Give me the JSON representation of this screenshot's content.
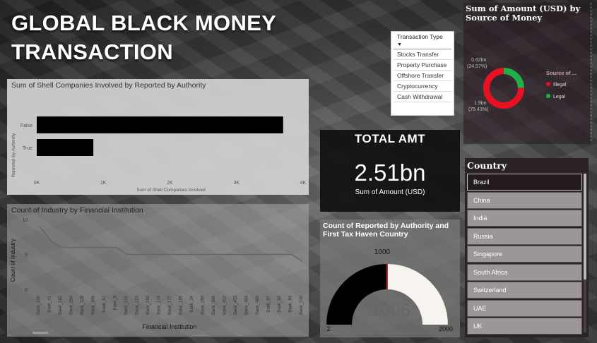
{
  "title": "GLOBAL BLACK MONEY TRANSACTION",
  "shell_chart": {
    "title": "Sum of Shell Companies Involved by Reported by Authority",
    "ylabel": "Reported by Authority",
    "xlabel": "Sum of Shell Companies Involved",
    "bar_color": "#000000"
  },
  "industry_chart": {
    "title": "Count of Industry by Financial Institution",
    "ylabel": "Count of Industry",
    "xlabel": "Financial Institution",
    "line_color": "#5a6a68"
  },
  "transaction_slicer": {
    "header": "Transaction Type",
    "items": [
      "Stocks Transfer",
      "Property Purchase",
      "Offshore Transfer",
      "Cryptocurrency",
      "Cash Withdrawal"
    ]
  },
  "total_card": {
    "label": "TOTAL AMT",
    "value": "2.51bn",
    "sub": "Sum of Amount (USD)"
  },
  "gauge": {
    "title": "Count of Reported by Authority and First Tax Haven Country",
    "target_label": "1000",
    "value_label": "1006",
    "min_label": "2",
    "max_label": "2000",
    "fill_color": "#000000",
    "rest_color": "#f7f3ee",
    "target_color": "#c0181c"
  },
  "donut": {
    "title": "Sum of Amount (USD) by Source of Money",
    "legend_title": "Source of ...",
    "label_legal_amt": "0.62bn",
    "label_legal_pct": "(24.57%)",
    "label_illegal_amt": "1.9bn",
    "label_illegal_pct": "(75.43%)",
    "colors": {
      "Illegal": "#e81123",
      "Legal": "#20b04a"
    }
  },
  "country_slicer": {
    "title": "Country",
    "items": [
      "Brazil",
      "China",
      "India",
      "Russia",
      "Singapore",
      "South Africa",
      "Switzerland",
      "UAE",
      "UK"
    ],
    "selected": "Brazil"
  },
  "chart_data": [
    {
      "type": "bar",
      "title": "Sum of Shell Companies Involved by Reported by Authority",
      "xlabel": "Sum of Shell Companies Involved",
      "ylabel": "Reported by Authority",
      "categories": [
        "False",
        "True"
      ],
      "values": [
        3700,
        850
      ],
      "xlim": [
        0,
        4000
      ],
      "ticks": [
        "0K",
        "1K",
        "2K",
        "3K",
        "4K"
      ],
      "grid": false
    },
    {
      "type": "line",
      "title": "Count of Industry by Financial Institution",
      "xlabel": "Financial Institution",
      "ylabel": "Count of Industry",
      "x": [
        "Bank_100",
        "Bank_41",
        "Bank_182",
        "Bank_254",
        "Bank_328",
        "Bank_396",
        "Bank_67",
        "Bank_8",
        "Bank_101",
        "Bank_123",
        "Bank_150",
        "Bank_174",
        "Bank_177",
        "Bank_195",
        "Bank_24",
        "Bank_289",
        "Bank_386",
        "Bank_410",
        "Bank_455",
        "Bank_464",
        "Bank_485",
        "Bank_87",
        "Bank_92",
        "Bank_94",
        "Bank_109"
      ],
      "values": [
        9,
        7,
        6,
        6,
        6,
        6,
        6,
        6,
        5,
        5,
        5,
        5,
        5,
        5,
        5,
        5,
        5,
        5,
        5,
        5,
        5,
        5,
        5,
        5,
        4
      ],
      "ylim": [
        0,
        10
      ],
      "yticks": [
        "0",
        "5",
        "10"
      ],
      "grid": false
    },
    {
      "type": "pie",
      "title": "Sum of Amount (USD) by Source of Money",
      "categories": [
        "Legal",
        "Illegal"
      ],
      "values": [
        0.62,
        1.9
      ],
      "labels": [
        "0.62bn (24.57%)",
        "1.9bn (75.43%)"
      ],
      "legend": "right"
    },
    {
      "type": "gauge",
      "title": "Count of Reported by Authority and First Tax Haven Country",
      "value": 1006,
      "min": 2,
      "max": 2000,
      "target": 1000
    }
  ]
}
